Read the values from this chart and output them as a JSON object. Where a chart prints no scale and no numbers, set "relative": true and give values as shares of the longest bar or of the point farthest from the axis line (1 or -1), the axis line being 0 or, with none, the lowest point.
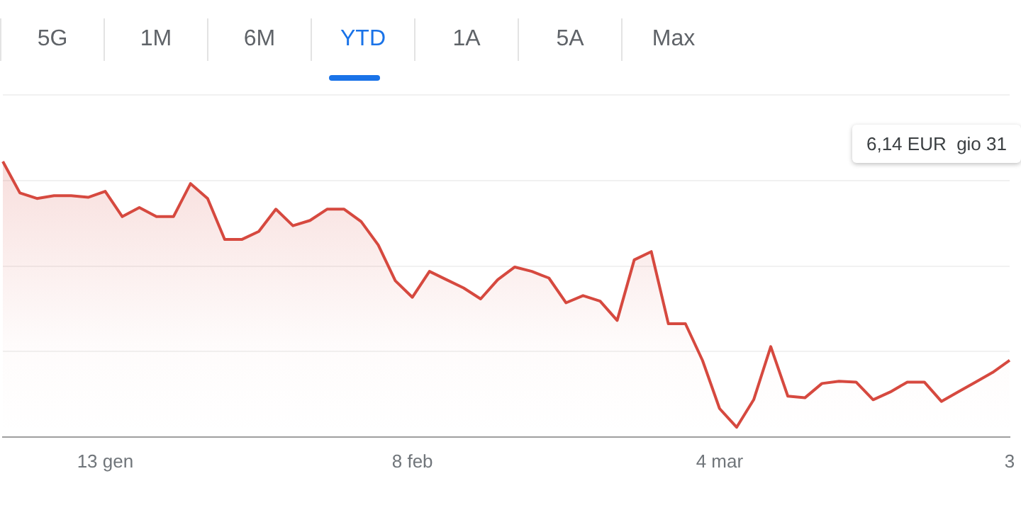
{
  "chart_data": {
    "type": "area",
    "relative": true,
    "color": "#d6493f",
    "grid": "y",
    "categories": [
      null,
      null,
      null,
      null,
      null,
      null,
      "13 gen",
      null,
      null,
      null,
      null,
      null,
      null,
      null,
      null,
      null,
      null,
      null,
      null,
      null,
      null,
      null,
      null,
      null,
      "8 feb",
      null,
      null,
      null,
      null,
      null,
      null,
      null,
      null,
      null,
      null,
      null,
      null,
      null,
      null,
      null,
      null,
      null,
      "4 mar",
      null,
      null,
      null,
      null,
      null,
      null,
      null,
      null,
      null,
      null,
      null,
      null,
      null,
      null,
      null,
      null,
      "3"
    ],
    "values": [
      1,
      0.886,
      0.866,
      0.876,
      0.876,
      0.87,
      0.892,
      0.8,
      0.833,
      0.8,
      0.8,
      0.92,
      0.866,
      0.717,
      0.717,
      0.746,
      0.827,
      0.767,
      0.786,
      0.827,
      0.827,
      0.782,
      0.697,
      0.567,
      0.507,
      0.601,
      0.571,
      0.541,
      0.501,
      0.571,
      0.617,
      0.601,
      0.577,
      0.487,
      0.513,
      0.493,
      0.423,
      0.643,
      0.673,
      0.411,
      0.411,
      0.278,
      0.103,
      0.035,
      0.135,
      0.328,
      0.148,
      0.142,
      0.194,
      0.202,
      0.199,
      0.135,
      0.163,
      0.199,
      0.199,
      0.129,
      0.164,
      0.199,
      0.234,
      0.278
    ],
    "annotations": [
      "5G",
      "1M",
      "6M",
      "YTD",
      "1A",
      "5A",
      "Max",
      "6,14 EUR  gio 31"
    ]
  }
}
